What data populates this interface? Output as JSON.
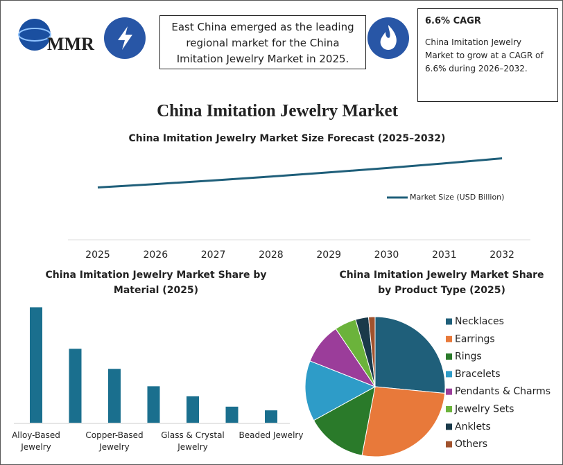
{
  "header": {
    "logo": "MMR",
    "insight": "East China emerged as the leading regional market for the China Imitation Jewelry Market in 2025.",
    "cagr_title": "6.6% CAGR",
    "cagr_text": "China Imitation Jewelry Market to grow at a CAGR of 6.6% during 2026–2032."
  },
  "title": "China Imitation Jewelry Market",
  "chart_data": [
    {
      "type": "line",
      "title": "China Imitation Jewelry Market Size Forecast (2025–2032)",
      "categories": [
        "2025",
        "2026",
        "2027",
        "2028",
        "2029",
        "2030",
        "2031",
        "2032"
      ],
      "series": [
        {
          "name": "Market Size (USD Billion)",
          "color": "#1f5f7a",
          "values": [
            7.6,
            8.1,
            8.64,
            9.21,
            9.82,
            10.46,
            11.15,
            11.89
          ]
        }
      ],
      "ylim": [
        0,
        15
      ],
      "legend": "right"
    },
    {
      "type": "bar",
      "title": "China Imitation Jewelry Market Share by Material (2025)",
      "categories": [
        "Alloy-Based Jewelry",
        null,
        "Copper-Based Jewelry",
        null,
        "Glass & Crystal Jewelry",
        null,
        "Beaded Jewelry"
      ],
      "values": [
        34.5,
        22.1,
        16.1,
        10.9,
        7.9,
        4.8,
        3.7
      ],
      "color": "#1a6f8e",
      "ylim": [
        0,
        35
      ]
    },
    {
      "type": "pie",
      "title": "China Imitation Jewelry Market Share by Product Type (2025)",
      "categories": [
        "Necklaces",
        "Earrings",
        "Rings",
        "Bracelets",
        "Pendants & Charms",
        "Jewelry Sets",
        "Anklets",
        "Others"
      ],
      "values": [
        26.5,
        26.5,
        14,
        14,
        9.5,
        5,
        3,
        1.5
      ],
      "colors": [
        "#1f5f7a",
        "#e8793a",
        "#2a7a2a",
        "#2e9cc8",
        "#9b3d9a",
        "#6bb33b",
        "#1a3a4a",
        "#a0522d"
      ],
      "legend": "right"
    }
  ]
}
